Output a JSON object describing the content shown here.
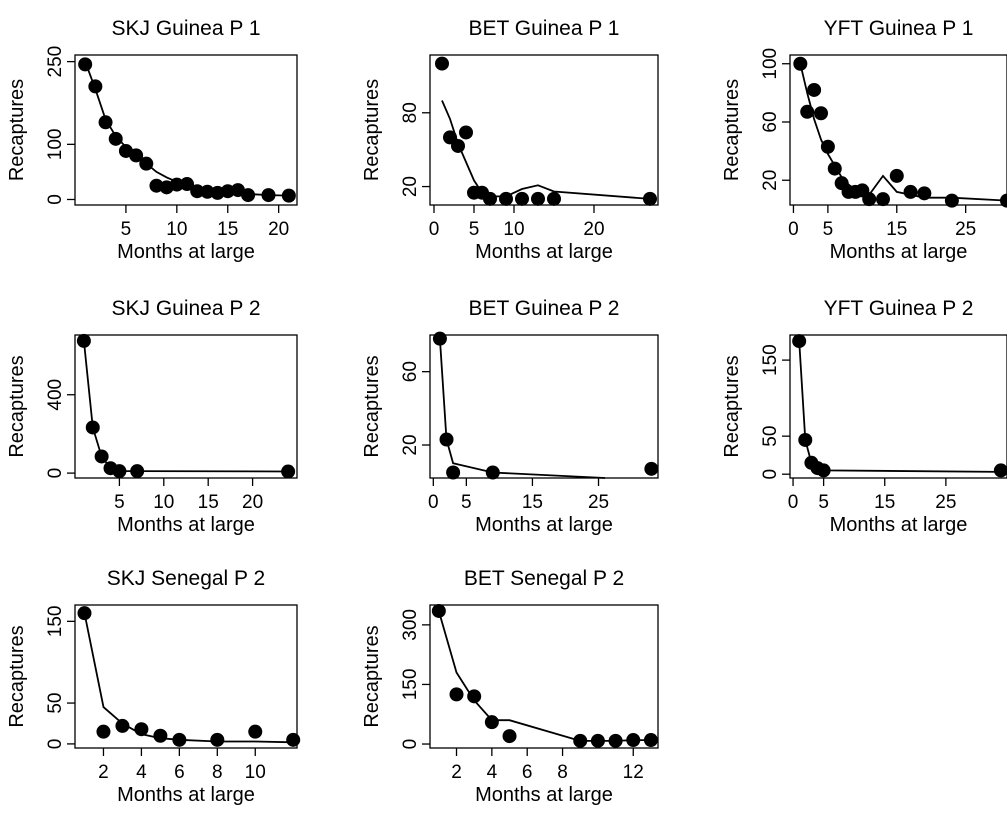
{
  "chart_data": [
    {
      "type": "scatter",
      "title": "SKJ Guinea P 1",
      "xlabel": "Months at large",
      "ylabel": "Recaptures",
      "xlim": [
        0,
        21.8
      ],
      "ylim": [
        -10,
        262
      ],
      "xticks": [
        5,
        10,
        15,
        20
      ],
      "yticks": [
        0,
        100,
        250
      ],
      "series": [
        {
          "kind": "points",
          "x": [
            1,
            2,
            3,
            4,
            5,
            6,
            7,
            8,
            9,
            10,
            11,
            12,
            13,
            14,
            15,
            16,
            17,
            19,
            21
          ],
          "y": [
            245,
            205,
            140,
            110,
            88,
            80,
            65,
            25,
            22,
            27,
            28,
            15,
            14,
            12,
            15,
            17,
            8,
            8,
            7
          ]
        },
        {
          "kind": "line",
          "x": [
            1,
            2,
            3,
            4,
            5,
            6,
            7,
            8,
            9,
            10,
            11,
            12,
            13,
            14,
            15,
            16,
            17,
            19,
            21
          ],
          "y": [
            250,
            200,
            145,
            115,
            95,
            80,
            65,
            50,
            40,
            32,
            26,
            21,
            18,
            15,
            13,
            12,
            10,
            8,
            7
          ]
        }
      ]
    },
    {
      "type": "scatter",
      "title": "BET Guinea P 1",
      "xlabel": "Months at large",
      "ylabel": "Recaptures",
      "xlim": [
        -0.5,
        28
      ],
      "ylim": [
        5,
        127
      ],
      "xticks": [
        0,
        5,
        10,
        20
      ],
      "yticks": [
        20,
        80
      ],
      "series": [
        {
          "kind": "points",
          "x": [
            1,
            2,
            3,
            4,
            5,
            6,
            7,
            9,
            11,
            13,
            15,
            27
          ],
          "y": [
            120,
            60,
            53,
            64,
            15,
            15,
            10,
            10,
            10,
            10,
            10,
            10
          ]
        },
        {
          "kind": "line",
          "x": [
            1,
            2,
            3,
            4,
            5,
            6,
            7,
            9,
            11,
            13,
            15,
            27
          ],
          "y": [
            90,
            75,
            55,
            40,
            25,
            15,
            12,
            12,
            18,
            21,
            16,
            10
          ]
        }
      ]
    },
    {
      "type": "scatter",
      "title": "YFT Guinea P 1",
      "xlabel": "Months at large",
      "ylabel": "Recaptures",
      "xlim": [
        -0.5,
        31
      ],
      "ylim": [
        3,
        106
      ],
      "xticks": [
        0,
        5,
        15,
        25
      ],
      "yticks": [
        20,
        60,
        100
      ],
      "series": [
        {
          "kind": "points",
          "x": [
            1,
            2,
            3,
            4,
            5,
            6,
            7,
            8,
            9,
            10,
            11,
            13,
            15,
            17,
            19,
            23,
            31
          ],
          "y": [
            100,
            67,
            82,
            66,
            43,
            28,
            18,
            12,
            12,
            13,
            7,
            7,
            23,
            12,
            11,
            6,
            6
          ]
        },
        {
          "kind": "line",
          "x": [
            1,
            2,
            3,
            4,
            5,
            6,
            7,
            8,
            9,
            10,
            11,
            13,
            15,
            17,
            19,
            23,
            31
          ],
          "y": [
            100,
            80,
            62,
            48,
            38,
            30,
            22,
            17,
            13,
            11,
            10,
            23,
            12,
            10,
            8,
            8,
            6
          ]
        }
      ]
    },
    {
      "type": "scatter",
      "title": "SKJ Guinea P 2",
      "xlabel": "Months at large",
      "ylabel": "Recaptures",
      "xlim": [
        0,
        25
      ],
      "ylim": [
        -25,
        705
      ],
      "xticks": [
        5,
        10,
        15,
        20
      ],
      "yticks": [
        0,
        400
      ],
      "series": [
        {
          "kind": "points",
          "x": [
            1,
            2,
            3,
            4,
            5,
            7,
            24
          ],
          "y": [
            675,
            233,
            85,
            25,
            10,
            10,
            8
          ]
        },
        {
          "kind": "line",
          "x": [
            1,
            2,
            3,
            4,
            5,
            7,
            24
          ],
          "y": [
            675,
            233,
            85,
            25,
            10,
            10,
            8
          ]
        }
      ]
    },
    {
      "type": "scatter",
      "title": "BET Guinea P 2",
      "xlabel": "Months at large",
      "ylabel": "Recaptures",
      "xlim": [
        -0.5,
        34
      ],
      "ylim": [
        2,
        80
      ],
      "xticks": [
        0,
        5,
        15,
        25
      ],
      "yticks": [
        20,
        60
      ],
      "series": [
        {
          "kind": "points",
          "x": [
            1,
            2,
            3,
            9,
            33
          ],
          "y": [
            78,
            23,
            5,
            5,
            7
          ]
        },
        {
          "kind": "line",
          "x": [
            1,
            2,
            3,
            9,
            26
          ],
          "y": [
            78,
            23,
            10,
            5,
            2
          ]
        }
      ]
    },
    {
      "type": "scatter",
      "title": "YFT Guinea P 2",
      "xlabel": "Months at large",
      "ylabel": "Recaptures",
      "xlim": [
        -0.5,
        35
      ],
      "ylim": [
        -5,
        183
      ],
      "xticks": [
        0,
        5,
        15,
        25
      ],
      "yticks": [
        0,
        50,
        150
      ],
      "series": [
        {
          "kind": "points",
          "x": [
            1,
            2,
            3,
            4,
            5,
            34
          ],
          "y": [
            175,
            45,
            15,
            8,
            5,
            5
          ]
        },
        {
          "kind": "line",
          "x": [
            1,
            2,
            3,
            4,
            5,
            34
          ],
          "y": [
            175,
            45,
            15,
            8,
            5,
            3
          ]
        }
      ]
    },
    {
      "type": "scatter",
      "title": "SKJ Senegal P 2",
      "xlabel": "Months at large",
      "ylabel": "Recaptures",
      "xlim": [
        0.5,
        12.2
      ],
      "ylim": [
        -5,
        170
      ],
      "xticks": [
        2,
        4,
        6,
        8,
        10
      ],
      "yticks": [
        0,
        50,
        150
      ],
      "series": [
        {
          "kind": "points",
          "x": [
            1,
            2,
            3,
            4,
            5,
            6,
            8,
            10,
            12
          ],
          "y": [
            160,
            15,
            22,
            18,
            10,
            5,
            5,
            15,
            5
          ]
        },
        {
          "kind": "line",
          "x": [
            1,
            2,
            3,
            4,
            5,
            6,
            8,
            10,
            12
          ],
          "y": [
            160,
            45,
            25,
            12,
            7,
            5,
            3,
            3,
            2
          ]
        }
      ]
    },
    {
      "type": "scatter",
      "title": "BET Senegal P 2",
      "xlabel": "Months at large",
      "ylabel": "Recaptures",
      "xlim": [
        0.5,
        13.4
      ],
      "ylim": [
        -10,
        350
      ],
      "xticks": [
        2,
        4,
        6,
        8,
        12
      ],
      "yticks": [
        0,
        150,
        300
      ],
      "series": [
        {
          "kind": "points",
          "x": [
            1,
            2,
            3,
            4,
            5,
            9,
            10,
            11,
            12,
            13
          ],
          "y": [
            335,
            125,
            120,
            55,
            20,
            8,
            8,
            8,
            10,
            10
          ]
        },
        {
          "kind": "line",
          "x": [
            1,
            2,
            3,
            4,
            5,
            9,
            10,
            11,
            12,
            13
          ],
          "y": [
            335,
            180,
            110,
            60,
            60,
            8,
            8,
            8,
            10,
            10
          ]
        }
      ]
    }
  ]
}
